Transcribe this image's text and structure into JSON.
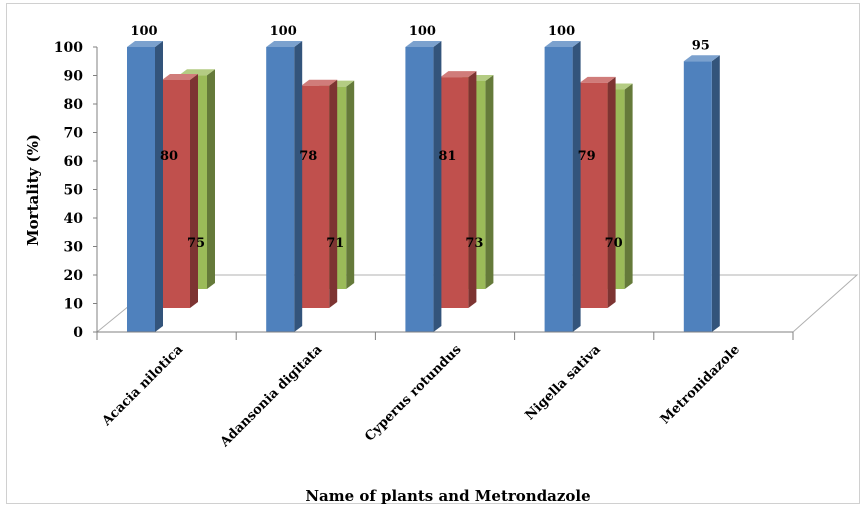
{
  "chart_data": {
    "type": "bar",
    "style": "3d-clustered-column",
    "categories": [
      "Acacia nilotica",
      "Adansonia digitata",
      "Cyperus rotundus",
      "Nigella sativa",
      "Metronidazole"
    ],
    "series": [
      {
        "values": [
          100,
          100,
          100,
          100,
          95
        ],
        "color": "#4f81bd"
      },
      {
        "values": [
          80,
          78,
          81,
          79,
          null
        ],
        "color": "#c0504d"
      },
      {
        "values": [
          75,
          71,
          73,
          70,
          null
        ],
        "color": "#9bbb59"
      }
    ],
    "xlabel": "Name of plants and Metrondazole",
    "ylabel": "Mortality (%)",
    "ylim": [
      0,
      100
    ],
    "yticks": [
      0,
      10,
      20,
      30,
      40,
      50,
      60,
      70,
      80,
      90,
      100
    ],
    "legend": "none",
    "grid": false
  }
}
